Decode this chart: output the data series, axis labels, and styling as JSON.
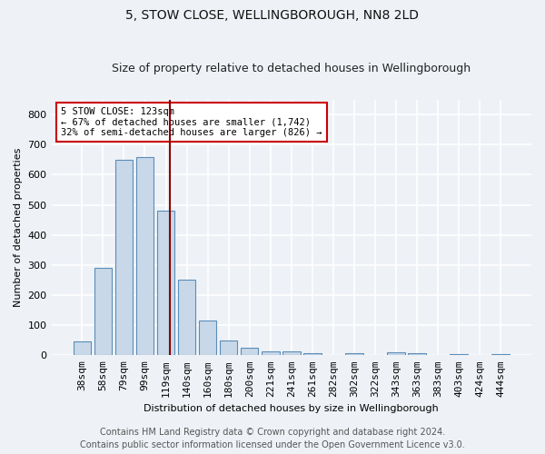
{
  "title1": "5, STOW CLOSE, WELLINGBOROUGH, NN8 2LD",
  "title2": "Size of property relative to detached houses in Wellingborough",
  "xlabel": "Distribution of detached houses by size in Wellingborough",
  "ylabel": "Number of detached properties",
  "categories": [
    "38sqm",
    "58sqm",
    "79sqm",
    "99sqm",
    "119sqm",
    "140sqm",
    "160sqm",
    "180sqm",
    "200sqm",
    "221sqm",
    "241sqm",
    "261sqm",
    "282sqm",
    "302sqm",
    "322sqm",
    "343sqm",
    "363sqm",
    "383sqm",
    "403sqm",
    "424sqm",
    "444sqm"
  ],
  "values": [
    45,
    290,
    650,
    660,
    480,
    250,
    115,
    50,
    25,
    14,
    14,
    8,
    0,
    7,
    0,
    10,
    8,
    0,
    5,
    0,
    5
  ],
  "bar_color": "#c8d8e8",
  "bar_edge_color": "#5b8db8",
  "annotation_line_color": "#8b0000",
  "annotation_box_text": "5 STOW CLOSE: 123sqm\n← 67% of detached houses are smaller (1,742)\n32% of semi-detached houses are larger (826) →",
  "annotation_box_facecolor": "white",
  "annotation_box_edgecolor": "#cc0000",
  "ylim": [
    0,
    850
  ],
  "yticks": [
    0,
    100,
    200,
    300,
    400,
    500,
    600,
    700,
    800
  ],
  "footer1": "Contains HM Land Registry data © Crown copyright and database right 2024.",
  "footer2": "Contains public sector information licensed under the Open Government Licence v3.0.",
  "bg_color": "#eef2f7",
  "plot_bg_color": "#eef2f7",
  "grid_color": "white",
  "red_line_x": 4.18,
  "annot_text_fontsize": 7.5,
  "title1_fontsize": 10,
  "title2_fontsize": 9,
  "axis_label_fontsize": 8,
  "tick_fontsize": 8,
  "footer_fontsize": 7
}
